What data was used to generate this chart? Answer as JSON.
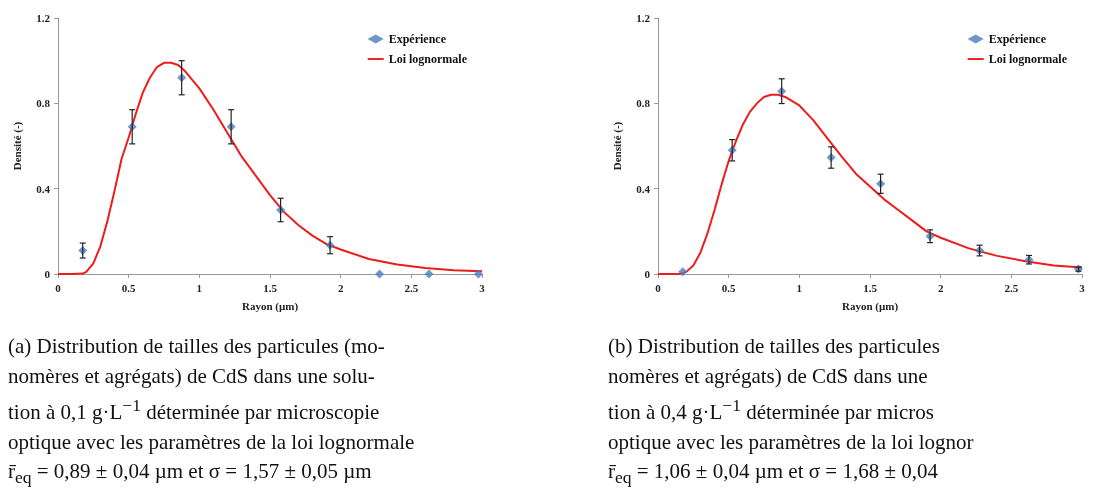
{
  "chart_data": [
    {
      "type": "scatter",
      "xlabel": "Rayon (µm)",
      "ylabel": "Densité (-)",
      "xlim": [
        0,
        3
      ],
      "xticks": [
        0,
        0.5,
        1,
        1.5,
        2,
        2.5,
        3
      ],
      "ylim": [
        0,
        1.2
      ],
      "yticks": [
        0,
        0.4,
        0.8,
        1.2
      ],
      "grid": false,
      "legend": "top right",
      "series": [
        {
          "name": "Expérience",
          "marker": "diamond",
          "color": "#4a7ebb",
          "x": [
            0.175,
            0.525,
            0.875,
            1.225,
            1.575,
            1.925,
            2.275,
            2.625,
            2.975
          ],
          "values": [
            0.11,
            0.69,
            0.92,
            0.69,
            0.3,
            0.135,
            0,
            0,
            0
          ],
          "errors": [
            0.035,
            0.08,
            0.08,
            0.08,
            0.055,
            0.04,
            null,
            null,
            null
          ]
        },
        {
          "name": "Loi lognormale",
          "type": "line",
          "marker": "none",
          "color": "#ee1c1c",
          "x": [
            0,
            0.1,
            0.175,
            0.2,
            0.25,
            0.3,
            0.35,
            0.4,
            0.45,
            0.5,
            0.55,
            0.6,
            0.65,
            0.7,
            0.75,
            0.8,
            0.85,
            0.9,
            1.0,
            1.1,
            1.2,
            1.3,
            1.4,
            1.5,
            1.6,
            1.7,
            1.8,
            1.9,
            2.0,
            2.2,
            2.4,
            2.6,
            2.8,
            3.0
          ],
          "values": [
            0,
            0,
            0.002,
            0.01,
            0.05,
            0.13,
            0.25,
            0.39,
            0.54,
            0.64,
            0.75,
            0.85,
            0.92,
            0.97,
            0.99,
            0.99,
            0.98,
            0.95,
            0.87,
            0.77,
            0.66,
            0.55,
            0.46,
            0.37,
            0.29,
            0.23,
            0.18,
            0.14,
            0.115,
            0.07,
            0.045,
            0.028,
            0.018,
            0.013
          ]
        }
      ],
      "annotations": [
        "(a) Distribution de tailles des particules (mo-",
        "nomères et agrégats) de CdS dans une solu-",
        "tion à 0,1 g·L$^{−1}$ déterminée par microscopie",
        "optique avec les paramètres de la loi lognormale",
        "r̄$_{eq}$ = 0,89 ± 0,04 µm et σ = 1,57 ± 0,05 µm"
      ]
    },
    {
      "type": "scatter",
      "xlabel": "Rayon (µm)",
      "ylabel": "Densité (-)",
      "xlim": [
        0,
        3
      ],
      "xticks": [
        0,
        0.5,
        1,
        1.5,
        2,
        2.5,
        3
      ],
      "ylim": [
        0,
        1.2
      ],
      "yticks": [
        0,
        0.4,
        0.8,
        1.2
      ],
      "grid": false,
      "legend": "top right",
      "series": [
        {
          "name": "Expérience",
          "marker": "diamond",
          "color": "#4a7ebb",
          "x": [
            0.175,
            0.525,
            0.875,
            1.225,
            1.575,
            1.925,
            2.275,
            2.625,
            2.975
          ],
          "values": [
            0.01,
            0.58,
            0.857,
            0.546,
            0.423,
            0.177,
            0.11,
            0.067,
            0.023
          ],
          "errors": [
            null,
            0.05,
            0.058,
            0.05,
            0.045,
            0.03,
            0.025,
            0.02,
            0.01
          ]
        },
        {
          "name": "Loi lognormale",
          "type": "line",
          "marker": "none",
          "color": "#ee1c1c",
          "x": [
            0,
            0.15,
            0.2,
            0.25,
            0.3,
            0.35,
            0.4,
            0.45,
            0.5,
            0.55,
            0.6,
            0.65,
            0.7,
            0.75,
            0.8,
            0.85,
            0.9,
            1.0,
            1.1,
            1.2,
            1.3,
            1.4,
            1.5,
            1.6,
            1.7,
            1.8,
            1.9,
            2.0,
            2.2,
            2.4,
            2.6,
            2.8,
            3.0
          ],
          "values": [
            0,
            0,
            0.01,
            0.04,
            0.1,
            0.19,
            0.3,
            0.42,
            0.53,
            0.62,
            0.7,
            0.76,
            0.8,
            0.83,
            0.84,
            0.84,
            0.83,
            0.79,
            0.72,
            0.635,
            0.55,
            0.47,
            0.41,
            0.35,
            0.3,
            0.25,
            0.2,
            0.17,
            0.12,
            0.085,
            0.06,
            0.04,
            0.03
          ]
        }
      ],
      "annotations": [
        "(b) Distribution de tailles des particules",
        "nomères et agrégats) de CdS dans une",
        "tion à 0,4 g·L$^{−1}$ déterminée par micros",
        "optique avec les paramètres de la loi lognor",
        "r̄$_{eq}$ = 1,06 ± 0,04 µm et σ = 1,68 ± 0,04"
      ]
    }
  ]
}
